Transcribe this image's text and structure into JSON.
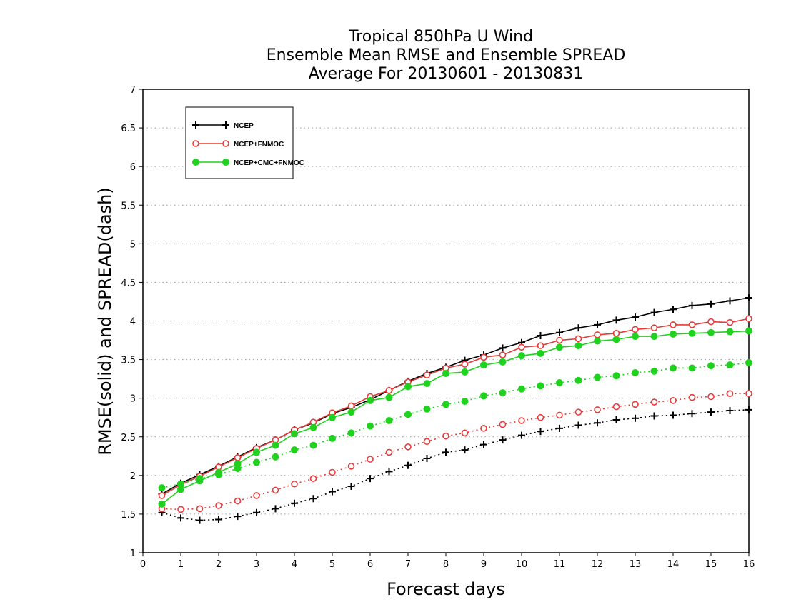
{
  "chart_data": {
    "type": "line",
    "title_lines": [
      "Tropical 850hPa U Wind",
      "Ensemble Mean RMSE and Ensemble SPREAD",
      "Average For 20130601 - 20130831"
    ],
    "xlabel": "Forecast days",
    "ylabel": "RMSE(solid) and SPREAD(dash)",
    "xlim": [
      0,
      16
    ],
    "ylim": [
      1,
      7
    ],
    "x_ticks": [
      "0",
      "1",
      "2",
      "3",
      "4",
      "5",
      "6",
      "7",
      "8",
      "9",
      "10",
      "11",
      "12",
      "13",
      "14",
      "15",
      "16"
    ],
    "y_ticks": [
      "1",
      "1.5",
      "2",
      "2.5",
      "3",
      "3.5",
      "4",
      "4.5",
      "5",
      "5.5",
      "6",
      "6.5",
      "7"
    ],
    "grid": "horizontal dotted",
    "legend_position": "top-left",
    "x": [
      0.5,
      1,
      1.5,
      2,
      2.5,
      3,
      3.5,
      4,
      4.5,
      5,
      5.5,
      6,
      6.5,
      7,
      7.5,
      8,
      8.5,
      9,
      9.5,
      10,
      10.5,
      11,
      11.5,
      12,
      12.5,
      13,
      13.5,
      14,
      14.5,
      15,
      15.5,
      16
    ],
    "series": [
      {
        "name": "NCEP",
        "color": "#000000",
        "marker": "plus",
        "rmse": [
          1.76,
          1.9,
          2.01,
          2.12,
          2.24,
          2.36,
          2.46,
          2.59,
          2.68,
          2.8,
          2.88,
          2.98,
          3.1,
          3.22,
          3.32,
          3.4,
          3.49,
          3.56,
          3.65,
          3.72,
          3.81,
          3.85,
          3.91,
          3.95,
          4.01,
          4.05,
          4.11,
          4.15,
          4.2,
          4.22,
          4.26,
          4.3
        ],
        "spread": [
          1.52,
          1.45,
          1.42,
          1.43,
          1.47,
          1.52,
          1.57,
          1.64,
          1.7,
          1.79,
          1.86,
          1.96,
          2.05,
          2.13,
          2.22,
          2.3,
          2.33,
          2.4,
          2.46,
          2.52,
          2.57,
          2.61,
          2.65,
          2.68,
          2.72,
          2.74,
          2.77,
          2.78,
          2.8,
          2.82,
          2.84,
          2.85
        ]
      },
      {
        "name": "NCEP+FNMOC",
        "color": "#e83a3a",
        "marker": "open-circle",
        "rmse": [
          1.74,
          1.88,
          1.99,
          2.11,
          2.23,
          2.35,
          2.46,
          2.59,
          2.69,
          2.81,
          2.9,
          3.02,
          3.1,
          3.21,
          3.3,
          3.39,
          3.44,
          3.53,
          3.56,
          3.66,
          3.68,
          3.75,
          3.77,
          3.82,
          3.84,
          3.89,
          3.91,
          3.95,
          3.95,
          3.99,
          3.98,
          4.03
        ],
        "spread": [
          1.57,
          1.56,
          1.57,
          1.61,
          1.67,
          1.74,
          1.81,
          1.89,
          1.96,
          2.04,
          2.12,
          2.21,
          2.3,
          2.37,
          2.44,
          2.51,
          2.55,
          2.61,
          2.66,
          2.71,
          2.75,
          2.78,
          2.82,
          2.85,
          2.89,
          2.92,
          2.95,
          2.97,
          3.01,
          3.02,
          3.06,
          3.06
        ]
      },
      {
        "name": "NCEP+CMC+FNMOC",
        "color": "#1ed21e",
        "marker": "filled-circle",
        "rmse": [
          1.63,
          1.82,
          1.93,
          2.04,
          2.15,
          2.3,
          2.39,
          2.54,
          2.62,
          2.75,
          2.82,
          2.97,
          3.01,
          3.15,
          3.19,
          3.32,
          3.34,
          3.43,
          3.47,
          3.55,
          3.58,
          3.66,
          3.68,
          3.74,
          3.76,
          3.8,
          3.8,
          3.83,
          3.84,
          3.85,
          3.86,
          3.87
        ],
        "spread": [
          1.84,
          1.89,
          1.96,
          2.01,
          2.09,
          2.17,
          2.24,
          2.33,
          2.39,
          2.48,
          2.55,
          2.64,
          2.71,
          2.79,
          2.86,
          2.92,
          2.96,
          3.03,
          3.07,
          3.12,
          3.16,
          3.2,
          3.23,
          3.27,
          3.29,
          3.33,
          3.35,
          3.39,
          3.39,
          3.42,
          3.43,
          3.46
        ]
      }
    ]
  }
}
